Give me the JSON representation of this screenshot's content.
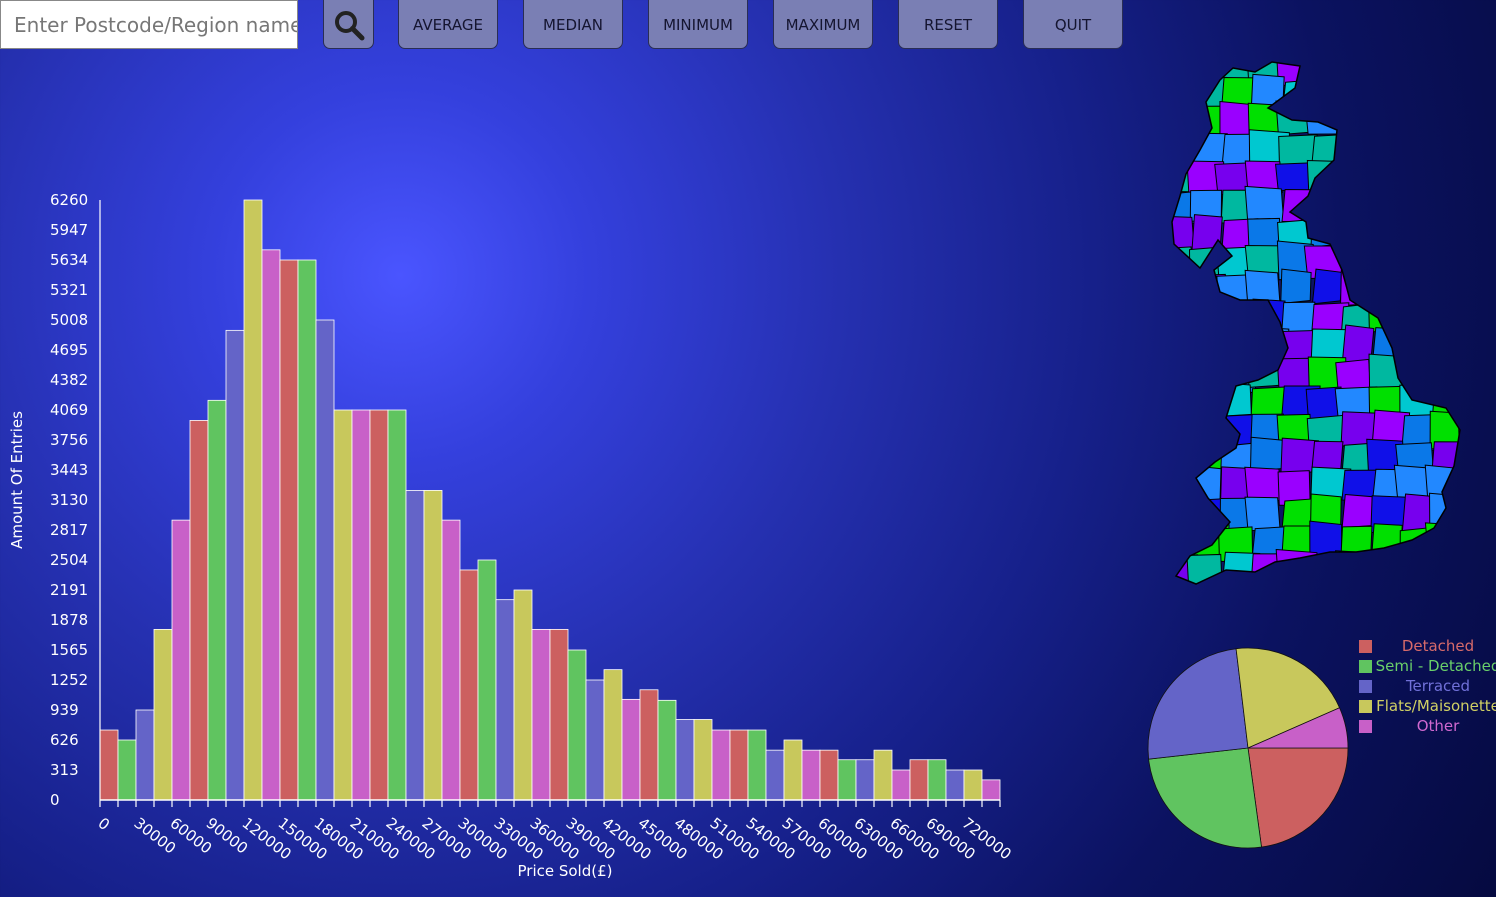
{
  "toolbar": {
    "search_placeholder": "Enter Postcode/Region name",
    "buttons": [
      "AVERAGE",
      "MEDIAN",
      "MINIMUM",
      "MAXIMUM",
      "RESET",
      "QUIT"
    ]
  },
  "colors": {
    "detached": "#cc6060",
    "semi_detached": "#60c460",
    "terraced": "#6464c8",
    "flats": "#c8c85c",
    "other": "#c860c8",
    "axis": "#ffffff"
  },
  "chart_data": {
    "type": "bar",
    "xlabel": "Price Sold(£)",
    "ylabel": "Amount Of Entries",
    "bin_width": 15000,
    "x_ticks": [
      "0",
      "30000",
      "60000",
      "90000",
      "120000",
      "150000",
      "180000",
      "210000",
      "240000",
      "270000",
      "300000",
      "330000",
      "360000",
      "390000",
      "420000",
      "450000",
      "480000",
      "510000",
      "540000",
      "570000",
      "600000",
      "630000",
      "660000",
      "690000",
      "720000"
    ],
    "y_ticks": [
      "0",
      "313",
      "626",
      "939",
      "1252",
      "1565",
      "1878",
      "2191",
      "2504",
      "2817",
      "3130",
      "3443",
      "3756",
      "4069",
      "4382",
      "4695",
      "5008",
      "5321",
      "5634",
      "5947",
      "6260"
    ],
    "ylim": [
      0,
      6260
    ],
    "series_order": [
      "Detached",
      "Semi - Detached",
      "Terraced",
      "Flats/Maisonette",
      "Other"
    ],
    "values": [
      730,
      626,
      939,
      1780,
      2920,
      3960,
      4170,
      4900,
      6260,
      5740,
      5634,
      5634,
      5008,
      4069,
      4069,
      4069,
      4069,
      3230,
      3230,
      2920,
      2400,
      2504,
      2090,
      2191,
      1780,
      1780,
      1565,
      1252,
      1360,
      1050,
      1150,
      1040,
      840,
      840,
      730,
      730,
      730,
      520,
      626,
      520,
      520,
      420,
      420,
      520,
      313,
      420,
      420,
      313,
      313,
      210
    ]
  },
  "pie_data": {
    "type": "pie",
    "labels": [
      "Detached",
      "Semi - Detached",
      "Terraced",
      "Flats/Maisonette",
      "Other"
    ],
    "values": [
      22.5,
      25,
      24.5,
      20,
      6.5
    ]
  },
  "legend": {
    "items": [
      "Detached",
      "Semi - Detached",
      "Terraced",
      "Flats/Maisonette",
      "Other"
    ]
  },
  "map": {
    "region_colors": [
      "#9a00ff",
      "#00e000",
      "#0a78e8",
      "#00b8a0",
      "#1010e8",
      "#00c8d0",
      "#2288ff",
      "#7700ee"
    ]
  }
}
